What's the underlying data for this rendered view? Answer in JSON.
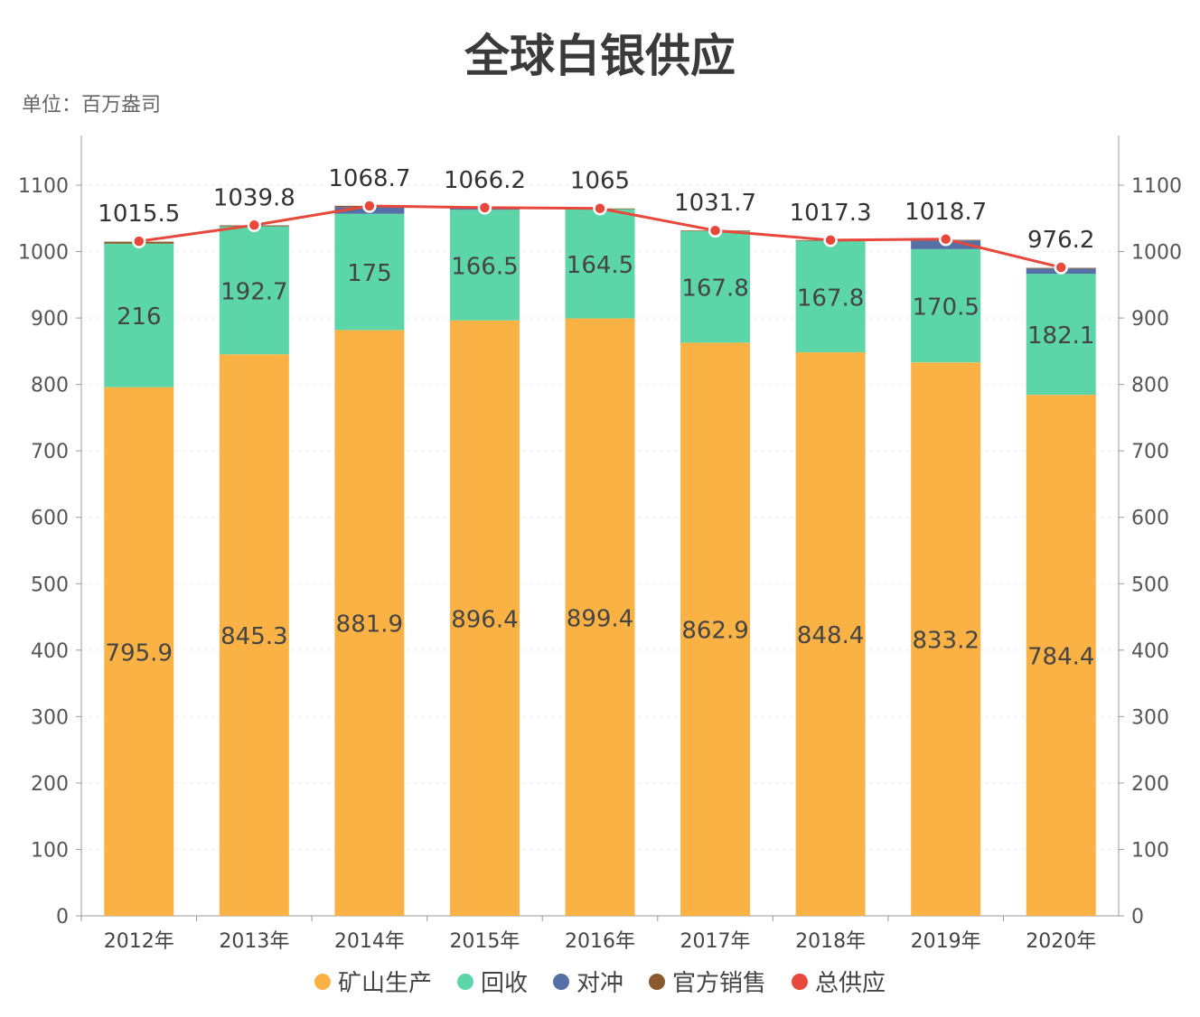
{
  "chart_data": {
    "type": "bar",
    "title": "全球白银供应",
    "unit_label": "单位：百万盎司",
    "categories": [
      "2012年",
      "2013年",
      "2014年",
      "2015年",
      "2016年",
      "2017年",
      "2018年",
      "2019年",
      "2020年"
    ],
    "series": [
      {
        "name": "矿山生产",
        "type": "bar",
        "color": "#FBB245",
        "values": [
          795.9,
          845.3,
          881.9,
          896.4,
          899.4,
          862.9,
          848.4,
          833.2,
          784.4
        ]
      },
      {
        "name": "回收",
        "type": "bar",
        "color": "#5CD6A8",
        "values": [
          216,
          192.7,
          175,
          166.5,
          164.5,
          167.8,
          167.8,
          170.5,
          182.1
        ]
      },
      {
        "name": "对冲",
        "type": "bar",
        "color": "#5470A6",
        "values": [
          0,
          0,
          10,
          2,
          0,
          0,
          0,
          13,
          8
        ]
      },
      {
        "name": "官方销售",
        "type": "bar",
        "color": "#8A5A2E",
        "values": [
          3,
          1.5,
          2,
          1,
          1,
          1,
          1,
          1,
          1
        ]
      },
      {
        "name": "总供应",
        "type": "line",
        "color": "#E8473B",
        "values": [
          1015.5,
          1039.8,
          1068.7,
          1066.2,
          1065,
          1031.7,
          1017.3,
          1018.7,
          976.2
        ]
      }
    ],
    "ylim": [
      0,
      1100
    ],
    "yticks": [
      0,
      100,
      200,
      300,
      400,
      500,
      600,
      700,
      800,
      900,
      1000,
      1100
    ],
    "label_series": [
      "矿山生产",
      "回收"
    ],
    "grid": true,
    "dual_y_axis": true,
    "legend_position": "bottom"
  }
}
